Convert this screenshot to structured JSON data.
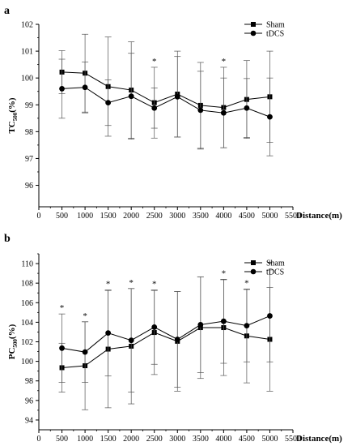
{
  "chart_data": [
    {
      "type": "line",
      "panel_label": "a",
      "ylabel_main": "TC",
      "ylabel_sub": "500",
      "ylabel_unit": "(%)",
      "xlabel": "Distance(m)",
      "x": [
        500,
        1000,
        1500,
        2000,
        2500,
        3000,
        3500,
        4000,
        4500,
        5000
      ],
      "xticks": [
        "0",
        "500",
        "1000",
        "1500",
        "2000",
        "2500",
        "3000",
        "3500",
        "4000",
        "4500",
        "5000",
        "5500"
      ],
      "yticks": [
        "96",
        "97",
        "98",
        "99",
        "100",
        "101",
        "102"
      ],
      "xlim": [
        0,
        5500
      ],
      "ylim": [
        95.2,
        102.0
      ],
      "legend_position": "top-right",
      "series": [
        {
          "name": "Sham",
          "marker": "square",
          "values": [
            100.22,
            100.18,
            99.68,
            99.55,
            99.08,
            99.4,
            98.98,
            98.9,
            99.2,
            99.3
          ],
          "errors": [
            0.8,
            1.45,
            1.85,
            1.8,
            1.32,
            1.6,
            1.6,
            1.5,
            1.45,
            1.7
          ]
        },
        {
          "name": "tDCS",
          "marker": "circle",
          "values": [
            99.6,
            99.65,
            99.08,
            99.32,
            98.88,
            99.3,
            98.8,
            98.7,
            98.88,
            98.55
          ],
          "errors": [
            1.1,
            0.95,
            0.85,
            1.6,
            0.75,
            1.5,
            1.45,
            1.3,
            1.1,
            1.45
          ]
        }
      ],
      "annotations": [
        {
          "x": 2500,
          "text": "*"
        },
        {
          "x": 4000,
          "text": "*"
        }
      ]
    },
    {
      "type": "line",
      "panel_label": "b",
      "ylabel_main": "PC",
      "ylabel_sub": "500",
      "ylabel_unit": "(%)",
      "xlabel": "Distance(m)",
      "x": [
        500,
        1000,
        1500,
        2000,
        2500,
        3000,
        3500,
        4000,
        4500,
        5000
      ],
      "xticks": [
        "0",
        "500",
        "1000",
        "1500",
        "2000",
        "2500",
        "3000",
        "3500",
        "4000",
        "4500",
        "5000",
        "5500"
      ],
      "yticks": [
        "94",
        "96",
        "98",
        "100",
        "102",
        "104",
        "106",
        "108",
        "110"
      ],
      "xlim": [
        0,
        5500
      ],
      "ylim": [
        93.0,
        111.0
      ],
      "legend_position": "top-right",
      "series": [
        {
          "name": "Sham",
          "marker": "square",
          "values": [
            99.35,
            99.55,
            101.25,
            101.55,
            102.95,
            102.05,
            103.45,
            103.45,
            102.6,
            102.25
          ],
          "errors": [
            2.5,
            4.5,
            6.0,
            5.9,
            4.3,
            5.1,
            5.2,
            4.9,
            4.8,
            5.3
          ]
        },
        {
          "name": "tDCS",
          "marker": "circle",
          "values": [
            101.35,
            100.95,
            102.9,
            102.15,
            103.5,
            102.25,
            103.75,
            104.1,
            103.65,
            104.65
          ],
          "errors": [
            3.5,
            3.1,
            4.4,
            5.3,
            3.8,
            4.9,
            4.9,
            4.3,
            3.7,
            4.7
          ]
        }
      ],
      "annotations": [
        {
          "x": 500,
          "text": "*"
        },
        {
          "x": 1000,
          "text": "*"
        },
        {
          "x": 1500,
          "text": "*"
        },
        {
          "x": 2000,
          "text": "*"
        },
        {
          "x": 2500,
          "text": "*"
        },
        {
          "x": 4000,
          "text": "*"
        },
        {
          "x": 4500,
          "text": "*"
        },
        {
          "x": 5000,
          "text": "*"
        }
      ]
    }
  ]
}
